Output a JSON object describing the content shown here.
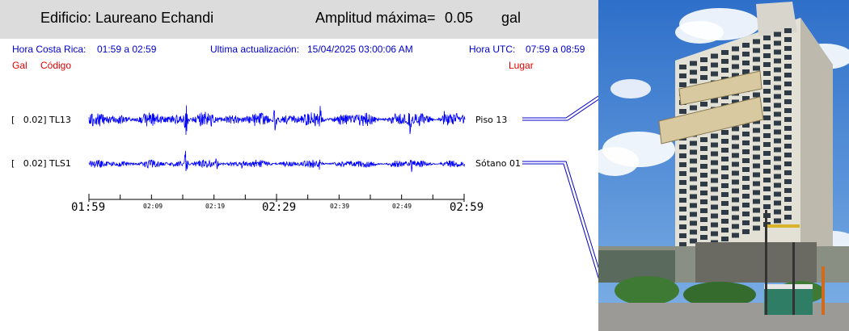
{
  "header": {
    "building_label": "Edificio: Laureano Echandi",
    "amplitude_label": "Amplitud máxima=",
    "amplitude_value": "0.05",
    "amplitude_unit": "gal"
  },
  "info": {
    "local_time_label": "Hora Costa Rica:",
    "local_time_value": "01:59 a 02:59",
    "update_label": "Ultima actualización:",
    "update_value": "15/04/2025 03:00:06 AM",
    "utc_label": "Hora UTC:",
    "utc_value": "07:59 a 08:59",
    "col_gal": "Gal",
    "col_code": "Código",
    "col_place": "Lugar"
  },
  "channels": [
    {
      "label": "[   0.02] TL13",
      "place": "Piso 13"
    },
    {
      "label": "[   0.02] TLS1",
      "place": "Sótano 01"
    }
  ],
  "time_axis": {
    "major": [
      "01:59",
      "02:29",
      "02:59"
    ],
    "minor": [
      "02:09",
      "02:19",
      "02:39",
      "02:49"
    ]
  },
  "colors": {
    "trace": "#0000ff",
    "header_bg": "#dcdcdc",
    "info_text": "#0000cc",
    "column_text": "#e00000"
  }
}
